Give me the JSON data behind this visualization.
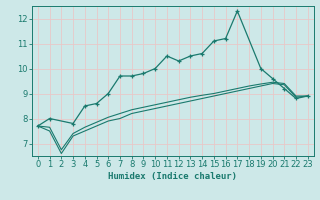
{
  "title": "",
  "xlabel": "Humidex (Indice chaleur)",
  "x": [
    0,
    1,
    2,
    3,
    4,
    5,
    6,
    7,
    8,
    9,
    10,
    11,
    12,
    13,
    14,
    15,
    16,
    17,
    18,
    19,
    20,
    21,
    22,
    23
  ],
  "y_main": [
    7.7,
    8.0,
    null,
    7.8,
    8.5,
    8.6,
    9.0,
    9.7,
    9.7,
    9.8,
    10.0,
    10.5,
    10.3,
    10.5,
    10.6,
    11.1,
    11.2,
    12.3,
    null,
    10.0,
    9.6,
    9.2,
    8.8,
    8.9
  ],
  "y_lower1": [
    7.7,
    7.5,
    6.6,
    7.3,
    7.5,
    7.7,
    7.9,
    8.0,
    8.2,
    8.3,
    8.4,
    8.5,
    8.6,
    8.7,
    8.8,
    8.9,
    9.0,
    9.1,
    9.2,
    9.3,
    9.4,
    9.35,
    8.85,
    8.9
  ],
  "y_lower2": [
    7.7,
    7.65,
    6.75,
    7.4,
    7.65,
    7.85,
    8.05,
    8.2,
    8.35,
    8.45,
    8.55,
    8.65,
    8.75,
    8.85,
    8.93,
    9.0,
    9.1,
    9.2,
    9.3,
    9.38,
    9.45,
    9.4,
    8.9,
    8.9
  ],
  "color": "#1a7a6e",
  "bg_color": "#cde8e8",
  "grid_color": "#e8c8c8",
  "ylim": [
    6.5,
    12.5
  ],
  "xlim": [
    -0.5,
    23.5
  ],
  "yticks": [
    7,
    8,
    9,
    10,
    11,
    12
  ],
  "xticks": [
    0,
    1,
    2,
    3,
    4,
    5,
    6,
    7,
    8,
    9,
    10,
    11,
    12,
    13,
    14,
    15,
    16,
    17,
    18,
    19,
    20,
    21,
    22,
    23
  ],
  "tick_fontsize": 6,
  "xlabel_fontsize": 6.5
}
